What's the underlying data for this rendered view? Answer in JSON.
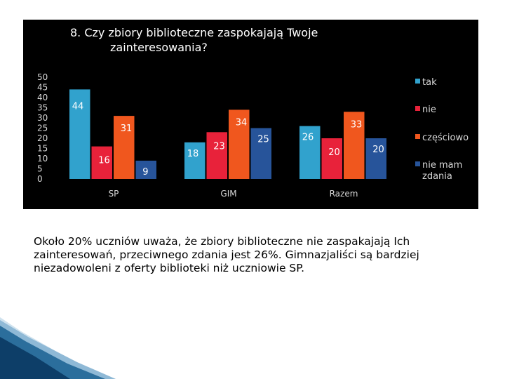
{
  "chart_data": {
    "type": "bar",
    "title": "8. Czy zbiory biblioteczne zaspokajają Twoje zainteresowania?",
    "title_lines": [
      "8. Czy zbiory biblioteczne zaspokajają Twoje",
      "zainteresowania?"
    ],
    "categories": [
      "SP",
      "GIM",
      "Razem"
    ],
    "series": [
      {
        "name": "tak",
        "values": [
          44,
          18,
          26
        ],
        "color": "#31a2cd",
        "labels": [
          "44",
          "18",
          "26"
        ]
      },
      {
        "name": "nie",
        "values": [
          16,
          23,
          20
        ],
        "color": "#e8223a",
        "labels": [
          "16",
          "23",
          "20"
        ]
      },
      {
        "name": "częściowo",
        "values": [
          31,
          34,
          33
        ],
        "color": "#f0571e",
        "labels": [
          "31",
          "34",
          "33"
        ]
      },
      {
        "name": "nie mam zdania",
        "values": [
          9,
          25,
          20
        ],
        "color": "#27549a",
        "labels": [
          "9",
          "25",
          "20"
        ],
        "legend_lines": [
          "nie mam",
          "zdania"
        ]
      }
    ],
    "ylim": [
      0,
      50
    ],
    "yticks": [
      "50",
      "45",
      "40",
      "35",
      "30",
      "25",
      "20",
      "15",
      "10",
      "5",
      "0"
    ],
    "xlabel": "",
    "ylabel": "",
    "grid": false,
    "legend": "right"
  },
  "caption": "Około 20% uczniów uważa, że zbiory biblioteczne nie zaspakajają Ich zainteresowań, przeciwnego zdania jest 26%. Gimnazjaliści są bardziej niezadowoleni z oferty biblioteki niż uczniowie SP."
}
